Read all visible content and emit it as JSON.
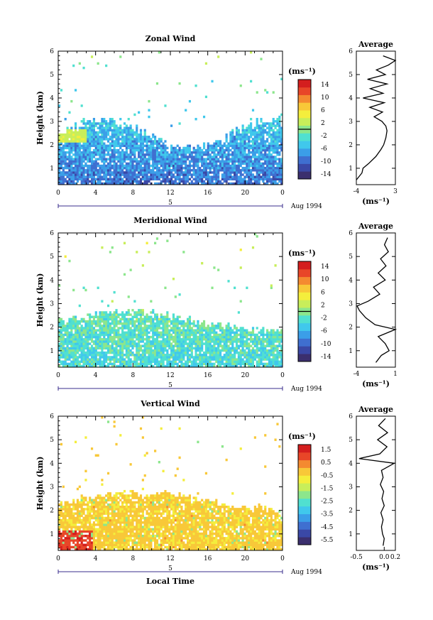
{
  "panels": [
    {
      "id": "zonal",
      "title": "Zonal Wind",
      "ylabel": "Height (km)",
      "yticks": [
        "1",
        "2",
        "3",
        "4",
        "5",
        "6"
      ],
      "xticks": [
        "0",
        "4",
        "8",
        "12",
        "16",
        "20",
        "0"
      ],
      "day_label": "5",
      "date_label": "Aug 1994",
      "unit_label": "(ms⁻¹)",
      "cbar_ticks": [
        "14",
        "10",
        "6",
        "2",
        "-2",
        "-6",
        "-10",
        "-14"
      ],
      "avg_title": "Average",
      "avg_yticks": [
        "1",
        "2",
        "3",
        "4",
        "5",
        "6"
      ],
      "avg_xticks": [
        "-4",
        "3"
      ],
      "avg_xlabel": "(ms⁻¹)"
    },
    {
      "id": "meridional",
      "title": "Meridional Wind",
      "ylabel": "Height (km)",
      "yticks": [
        "1",
        "2",
        "3",
        "4",
        "5",
        "6"
      ],
      "xticks": [
        "0",
        "4",
        "8",
        "12",
        "16",
        "20",
        "0"
      ],
      "day_label": "5",
      "date_label": "Aug 1994",
      "unit_label": "(ms⁻¹)",
      "cbar_ticks": [
        "14",
        "10",
        "6",
        "2",
        "-2",
        "-6",
        "-10",
        "-14"
      ],
      "avg_title": "Average",
      "avg_yticks": [
        "1",
        "2",
        "3",
        "4",
        "5",
        "6"
      ],
      "avg_xticks": [
        "-4",
        "1"
      ],
      "avg_xlabel": "(ms⁻¹)"
    },
    {
      "id": "vertical",
      "title": "Vertical Wind",
      "ylabel": "Height (km)",
      "yticks": [
        "1",
        "2",
        "3",
        "4",
        "5",
        "6"
      ],
      "xticks": [
        "0",
        "4",
        "8",
        "12",
        "16",
        "20",
        "0"
      ],
      "day_label": "5",
      "date_label": "Aug 1994",
      "unit_label": "(ms⁻¹)",
      "cbar_ticks": [
        "1.5",
        "0.5",
        "-0.5",
        "-1.5",
        "-2.5",
        "-3.5",
        "-4.5",
        "-5.5"
      ],
      "avg_title": "Average",
      "avg_yticks": [
        "1",
        "2",
        "3",
        "4",
        "5",
        "6"
      ],
      "avg_xticks": [
        "-0.5",
        "0.0",
        "0.2"
      ],
      "avg_xlabel": "(ms⁻¹)",
      "xlabel": "Local Time"
    }
  ],
  "colors": {
    "colormap": [
      "#3b2f6e",
      "#3a48a6",
      "#3f6fd0",
      "#3b9ee8",
      "#40c8ec",
      "#50e0d0",
      "#8ce68c",
      "#c8ee5a",
      "#f4ee3c",
      "#f8c838",
      "#f48a30",
      "#e84628",
      "#d41e1e"
    ]
  },
  "chart_data": [
    {
      "type": "heatmap",
      "title": "Zonal Wind",
      "xlabel": "",
      "ylabel": "Height (km)",
      "xlim": [
        0,
        24
      ],
      "ylim": [
        0.3,
        6
      ],
      "colorbar_range": [
        -16,
        16
      ],
      "colorbar_unit": "(ms⁻¹)",
      "profile": {
        "title": "Average",
        "xlim": [
          -4,
          3
        ],
        "heights": [
          0.5,
          0.8,
          1.0,
          1.2,
          1.5,
          1.8,
          2.0,
          2.3,
          2.6,
          2.8,
          3.0,
          3.2,
          3.4,
          3.6,
          3.8,
          4.0,
          4.2,
          4.4,
          4.6,
          4.8,
          5.0,
          5.2,
          5.4,
          5.6,
          5.8
        ],
        "values": [
          -4.0,
          -3.0,
          -2.8,
          -1.8,
          -0.5,
          0.4,
          0.9,
          1.3,
          1.5,
          1.3,
          0.6,
          -0.8,
          0.7,
          -1.6,
          1.0,
          -2.8,
          0.8,
          -1.5,
          1.5,
          -2.0,
          1.2,
          -0.4,
          1.7,
          3.0,
          0.8
        ]
      }
    },
    {
      "type": "heatmap",
      "title": "Meridional Wind",
      "xlabel": "",
      "ylabel": "Height (km)",
      "xlim": [
        0,
        24
      ],
      "ylim": [
        0.3,
        6
      ],
      "colorbar_range": [
        -16,
        16
      ],
      "colorbar_unit": "(ms⁻¹)",
      "profile": {
        "title": "Average",
        "xlim": [
          -4,
          1
        ],
        "heights": [
          0.5,
          0.8,
          1.0,
          1.3,
          1.6,
          1.9,
          2.1,
          2.4,
          2.7,
          2.9,
          3.1,
          3.4,
          3.7,
          4.0,
          4.3,
          4.6,
          4.9,
          5.2,
          5.5,
          5.8
        ],
        "values": [
          -1.5,
          -0.8,
          0.2,
          -0.3,
          -1.2,
          1.0,
          -1.6,
          -2.8,
          -3.6,
          -3.9,
          -2.5,
          -1.0,
          -1.8,
          -0.3,
          -1.2,
          -0.2,
          -0.9,
          0.1,
          -0.4,
          0.0
        ]
      }
    },
    {
      "type": "heatmap",
      "title": "Vertical Wind",
      "xlabel": "Local Time",
      "ylabel": "Height (km)",
      "xlim": [
        0,
        24
      ],
      "ylim": [
        0.3,
        6
      ],
      "colorbar_range": [
        -6,
        2
      ],
      "colorbar_unit": "(ms⁻¹)",
      "profile": {
        "title": "Average",
        "xlim": [
          -0.5,
          0.2
        ],
        "heights": [
          0.5,
          0.8,
          1.0,
          1.3,
          1.6,
          1.9,
          2.2,
          2.5,
          2.8,
          3.1,
          3.4,
          3.7,
          4.0,
          4.2,
          4.4,
          4.7,
          5.0,
          5.3,
          5.6,
          5.9
        ],
        "values": [
          -0.02,
          0.0,
          -0.03,
          -0.05,
          -0.02,
          -0.06,
          0.0,
          -0.04,
          -0.01,
          -0.07,
          -0.02,
          -0.05,
          0.18,
          -0.45,
          -0.08,
          0.05,
          -0.12,
          0.06,
          -0.1,
          0.02
        ]
      }
    }
  ]
}
